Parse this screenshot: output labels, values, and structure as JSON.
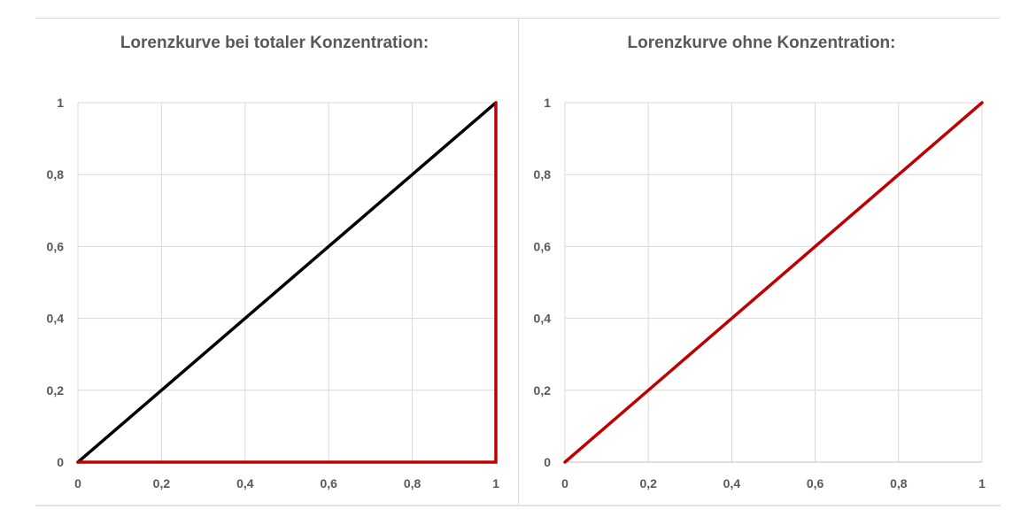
{
  "chart_data": [
    {
      "type": "line",
      "title": "Lorenzkurve bei totaler Konzentration:",
      "xlabel": "",
      "ylabel": "",
      "xlim": [
        0,
        1
      ],
      "ylim": [
        0,
        1
      ],
      "grid": true,
      "x_ticks": [
        "0",
        "0,2",
        "0,4",
        "0,6",
        "0,8",
        "1"
      ],
      "y_ticks": [
        "0",
        "0,2",
        "0,4",
        "0,6",
        "0,8",
        "1"
      ],
      "series": [
        {
          "x": [
            0,
            1
          ],
          "y": [
            0,
            1
          ],
          "color": "#000000"
        },
        {
          "x": [
            0,
            1,
            1
          ],
          "y": [
            0,
            0,
            1
          ],
          "color": "#c00000"
        }
      ]
    },
    {
      "type": "line",
      "title": "Lorenzkurve ohne Konzentration:",
      "xlabel": "",
      "ylabel": "",
      "xlim": [
        0,
        1
      ],
      "ylim": [
        0,
        1
      ],
      "grid": true,
      "x_ticks": [
        "0",
        "0,2",
        "0,4",
        "0,6",
        "0,8",
        "1"
      ],
      "y_ticks": [
        "0",
        "0,2",
        "0,4",
        "0,6",
        "0,8",
        "1"
      ],
      "series": [
        {
          "x": [
            0,
            1
          ],
          "y": [
            0,
            1
          ],
          "color": "#c00000"
        }
      ]
    }
  ]
}
